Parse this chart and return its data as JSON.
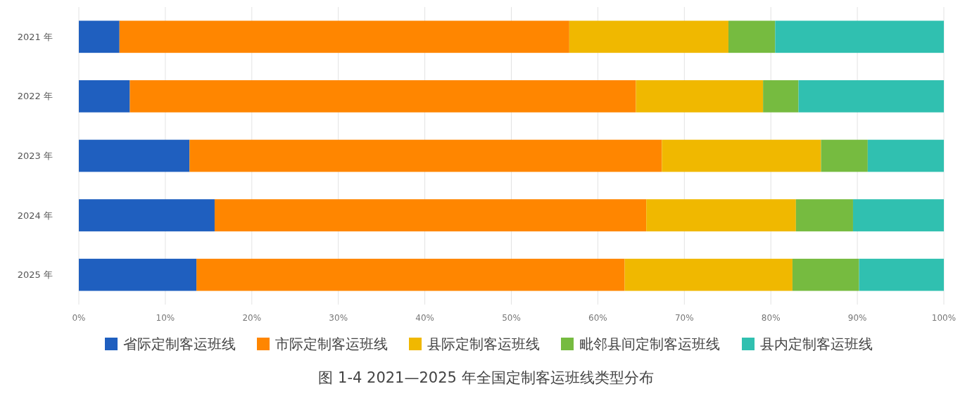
{
  "chart_data": {
    "type": "bar",
    "orientation": "horizontal",
    "stacked": true,
    "title": "图 1-4  2021—2025 年全国定制客运班线类型分布",
    "categories": [
      "2021 年",
      "2022 年",
      "2023 年",
      "2024 年",
      "2025 年"
    ],
    "series": [
      {
        "name": "省际定制客运班线",
        "color": "#1f5fbf",
        "values": [
          4.7,
          5.9,
          12.8,
          15.7,
          13.6
        ]
      },
      {
        "name": "市际定制客运班线",
        "color": "#ff8600",
        "values": [
          52.0,
          58.5,
          54.6,
          49.9,
          49.5
        ]
      },
      {
        "name": "县际定制客运班线",
        "color": "#f0b800",
        "values": [
          18.4,
          14.7,
          18.4,
          17.3,
          19.4
        ]
      },
      {
        "name": "毗邻县间定制客运班线",
        "color": "#76bb40",
        "values": [
          5.4,
          4.1,
          5.4,
          6.6,
          7.7
        ]
      },
      {
        "name": "县内定制客运班线",
        "color": "#30c0b0",
        "values": [
          19.5,
          16.8,
          8.8,
          10.5,
          9.8
        ]
      }
    ],
    "xlim": [
      0,
      100
    ],
    "xticks": [
      {
        "value": 0,
        "label": "0%"
      },
      {
        "value": 10,
        "label": "10%"
      },
      {
        "value": 20,
        "label": "20%"
      },
      {
        "value": 30,
        "label": "30%"
      },
      {
        "value": 40,
        "label": "40%"
      },
      {
        "value": 50,
        "label": "50%"
      },
      {
        "value": 60,
        "label": "60%"
      },
      {
        "value": 70,
        "label": "70%"
      },
      {
        "value": 80,
        "label": "80%"
      },
      {
        "value": 90,
        "label": "90%"
      },
      {
        "value": 100,
        "label": "100%"
      }
    ],
    "grid": "x",
    "legend": "bottom"
  }
}
